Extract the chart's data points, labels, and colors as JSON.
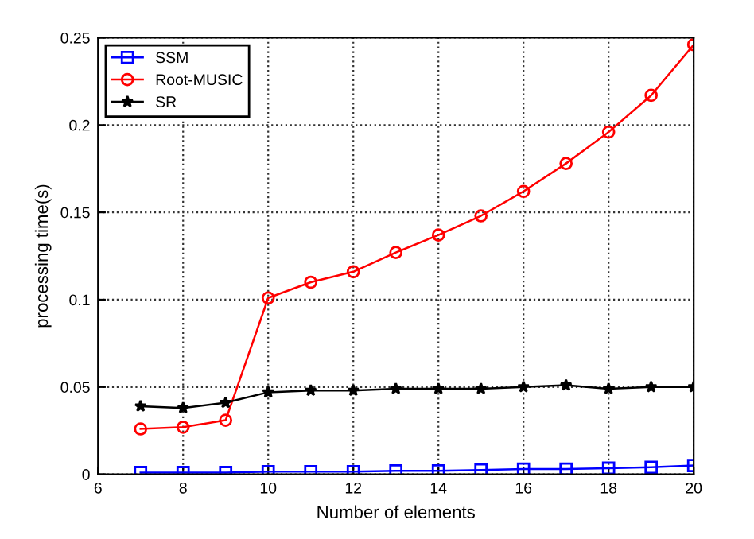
{
  "chart_data": {
    "type": "line",
    "xlabel": "Number of elements",
    "ylabel": "processing time(s)",
    "x": [
      7,
      8,
      9,
      10,
      11,
      12,
      13,
      14,
      15,
      16,
      17,
      18,
      19,
      20
    ],
    "series": [
      {
        "name": "SSM",
        "color": "#0000ff",
        "marker": "square",
        "values": [
          0.001,
          0.001,
          0.001,
          0.0015,
          0.0015,
          0.0015,
          0.002,
          0.002,
          0.0025,
          0.003,
          0.003,
          0.0035,
          0.004,
          0.005
        ]
      },
      {
        "name": "Root-MUSIC",
        "color": "#ff0000",
        "marker": "circle",
        "values": [
          0.026,
          0.027,
          0.031,
          0.101,
          0.11,
          0.116,
          0.127,
          0.137,
          0.148,
          0.162,
          0.178,
          0.196,
          0.217,
          0.246
        ]
      },
      {
        "name": "SR",
        "color": "#000000",
        "marker": "star",
        "values": [
          0.039,
          0.038,
          0.041,
          0.047,
          0.048,
          0.048,
          0.049,
          0.049,
          0.049,
          0.05,
          0.051,
          0.049,
          0.05,
          0.05
        ]
      }
    ],
    "xlim": [
      6,
      20
    ],
    "xticks": [
      6,
      8,
      10,
      12,
      14,
      16,
      18,
      20
    ],
    "ylim": [
      0,
      0.25
    ],
    "yticks": [
      0,
      0.05,
      0.1,
      0.15,
      0.2,
      0.25
    ],
    "grid": true,
    "legend": "top left",
    "line_style": "solid"
  }
}
